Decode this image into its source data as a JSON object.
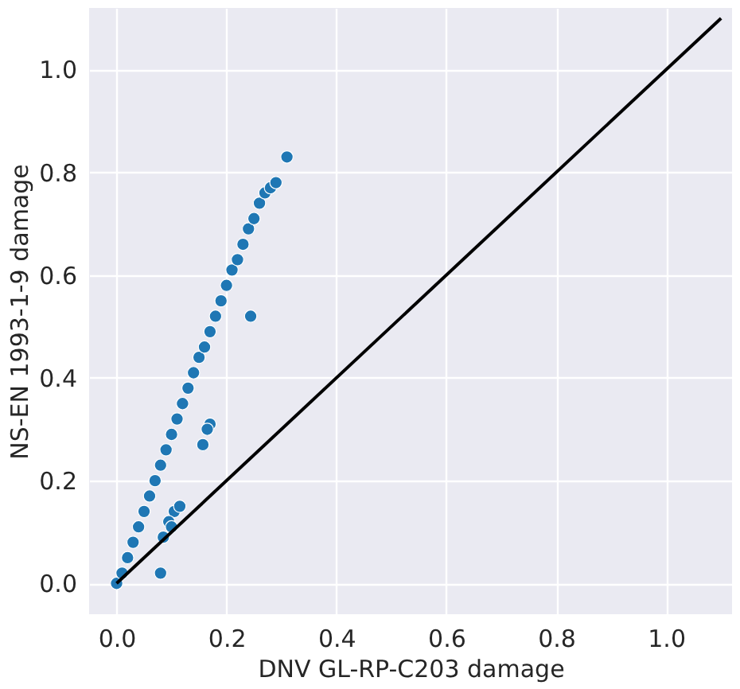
{
  "chart_data": {
    "type": "scatter",
    "xlabel": "DNV GL-RP-C203 damage",
    "ylabel": "NS-EN 1993-1-9 damage",
    "xlim": [
      -0.05,
      1.12
    ],
    "ylim": [
      -0.06,
      1.12
    ],
    "xticks": [
      {
        "value": 0,
        "label": "0.0"
      },
      {
        "value": 0.2,
        "label": "0.2"
      },
      {
        "value": 0.4,
        "label": "0.4"
      },
      {
        "value": 0.6,
        "label": "0.6"
      },
      {
        "value": 0.8,
        "label": "0.8"
      },
      {
        "value": 1,
        "label": "1.0"
      }
    ],
    "yticks": [
      {
        "value": 0,
        "label": "0.0"
      },
      {
        "value": 0.2,
        "label": "0.2"
      },
      {
        "value": 0.4,
        "label": "0.4"
      },
      {
        "value": 0.6,
        "label": "0.6"
      },
      {
        "value": 0.8,
        "label": "0.8"
      },
      {
        "value": 1,
        "label": "1.0"
      }
    ],
    "grid": true,
    "series": [
      {
        "marker": "circle",
        "color": "#1f77b4",
        "x": [
          0,
          0.01,
          0.02,
          0.03,
          0.04,
          0.05,
          0.06,
          0.07,
          0.08,
          0.09,
          0.1,
          0.11,
          0.12,
          0.13,
          0.14,
          0.15,
          0.16,
          0.17,
          0.18,
          0.19,
          0.2,
          0.21,
          0.22,
          0.23,
          0.24,
          0.25,
          0.26,
          0.27,
          0.28,
          0.29,
          0.31,
          0.244,
          0.17,
          0.157,
          0.165,
          0.105,
          0.085,
          0.08,
          0.115,
          0.095,
          0.1
        ],
        "values": [
          0,
          0.02,
          0.05,
          0.08,
          0.11,
          0.14,
          0.17,
          0.2,
          0.23,
          0.26,
          0.29,
          0.32,
          0.35,
          0.38,
          0.41,
          0.44,
          0.46,
          0.49,
          0.52,
          0.55,
          0.58,
          0.61,
          0.63,
          0.66,
          0.69,
          0.71,
          0.74,
          0.76,
          0.77,
          0.78,
          0.83,
          0.52,
          0.31,
          0.27,
          0.3,
          0.14,
          0.09,
          0.02,
          0.15,
          0.12,
          0.11
        ]
      },
      {
        "type": "line",
        "marker": "none",
        "color": "#000000",
        "x": [
          0,
          1.1
        ],
        "values": [
          0,
          1.1
        ]
      }
    ]
  }
}
